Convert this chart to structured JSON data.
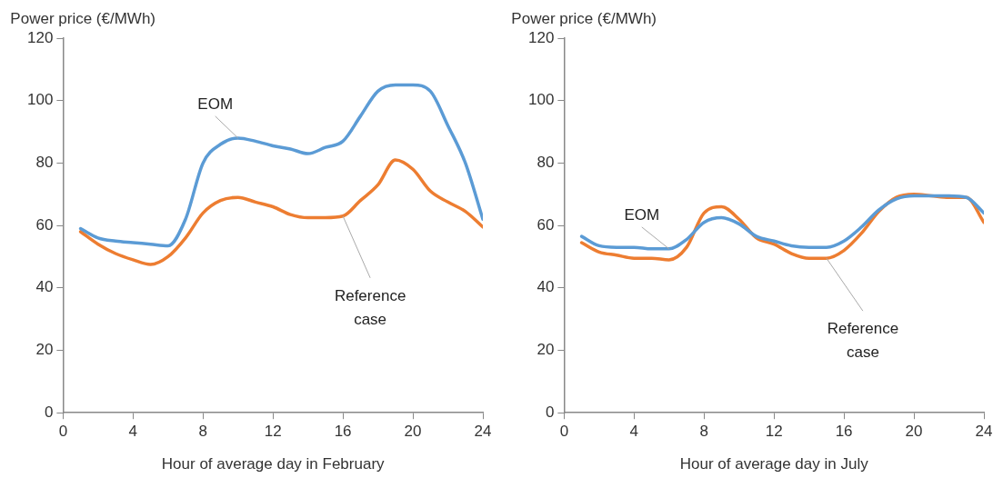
{
  "chart_data": [
    {
      "type": "line",
      "xlabel": "Hour of average day in February",
      "ylabel": "Power price (€/MWh)",
      "x": [
        1,
        2,
        3,
        4,
        5,
        6,
        7,
        8,
        9,
        10,
        11,
        12,
        13,
        14,
        15,
        16,
        17,
        18,
        19,
        20,
        21,
        22,
        23,
        24
      ],
      "xlim": [
        0,
        24
      ],
      "xticks": [
        0,
        4,
        8,
        12,
        16,
        20,
        24
      ],
      "ylim": [
        0,
        120
      ],
      "yticks": [
        0,
        20,
        40,
        60,
        80,
        100,
        120
      ],
      "grid": false,
      "legend": false,
      "line_style": "solid",
      "series": [
        {
          "name": "EOM",
          "color": "#5b9bd5",
          "values": [
            59,
            56,
            55,
            54.5,
            54,
            53.5,
            62,
            80,
            86,
            88,
            87,
            85.5,
            84.5,
            83,
            85,
            87,
            95,
            103,
            105,
            105,
            103,
            92,
            80,
            62
          ]
        },
        {
          "name": "Reference case",
          "color": "#ed7d31",
          "values": [
            58,
            54,
            51,
            49,
            47.5,
            50,
            56,
            64,
            68,
            69,
            67.5,
            66,
            63.5,
            62.5,
            62.5,
            63,
            68,
            73,
            81,
            78,
            71,
            67.5,
            64.5,
            59.5
          ]
        }
      ]
    },
    {
      "type": "line",
      "xlabel": "Hour of average day in July",
      "ylabel": "Power price (€/MWh)",
      "x": [
        1,
        2,
        3,
        4,
        5,
        6,
        7,
        8,
        9,
        10,
        11,
        12,
        13,
        14,
        15,
        16,
        17,
        18,
        19,
        20,
        21,
        22,
        23,
        24
      ],
      "xlim": [
        0,
        24
      ],
      "xticks": [
        0,
        4,
        8,
        12,
        16,
        20,
        24
      ],
      "ylim": [
        0,
        120
      ],
      "yticks": [
        0,
        20,
        40,
        60,
        80,
        100,
        120
      ],
      "grid": false,
      "legend": false,
      "line_style": "solid",
      "series": [
        {
          "name": "EOM",
          "color": "#5b9bd5",
          "values": [
            56.5,
            53.5,
            53,
            53,
            52.5,
            52.5,
            55.5,
            61,
            62.5,
            60.5,
            56.5,
            55,
            53.5,
            53,
            53,
            55,
            59.5,
            65,
            68.5,
            69.5,
            69.5,
            69.5,
            69,
            64
          ]
        },
        {
          "name": "Reference case",
          "color": "#ed7d31",
          "values": [
            54.5,
            51.5,
            50.5,
            49.5,
            49.5,
            49,
            53,
            64,
            66,
            62,
            56,
            54,
            51,
            49.5,
            49.5,
            52,
            57.5,
            64.5,
            69,
            70,
            69.5,
            69,
            69,
            61
          ]
        }
      ]
    }
  ]
}
